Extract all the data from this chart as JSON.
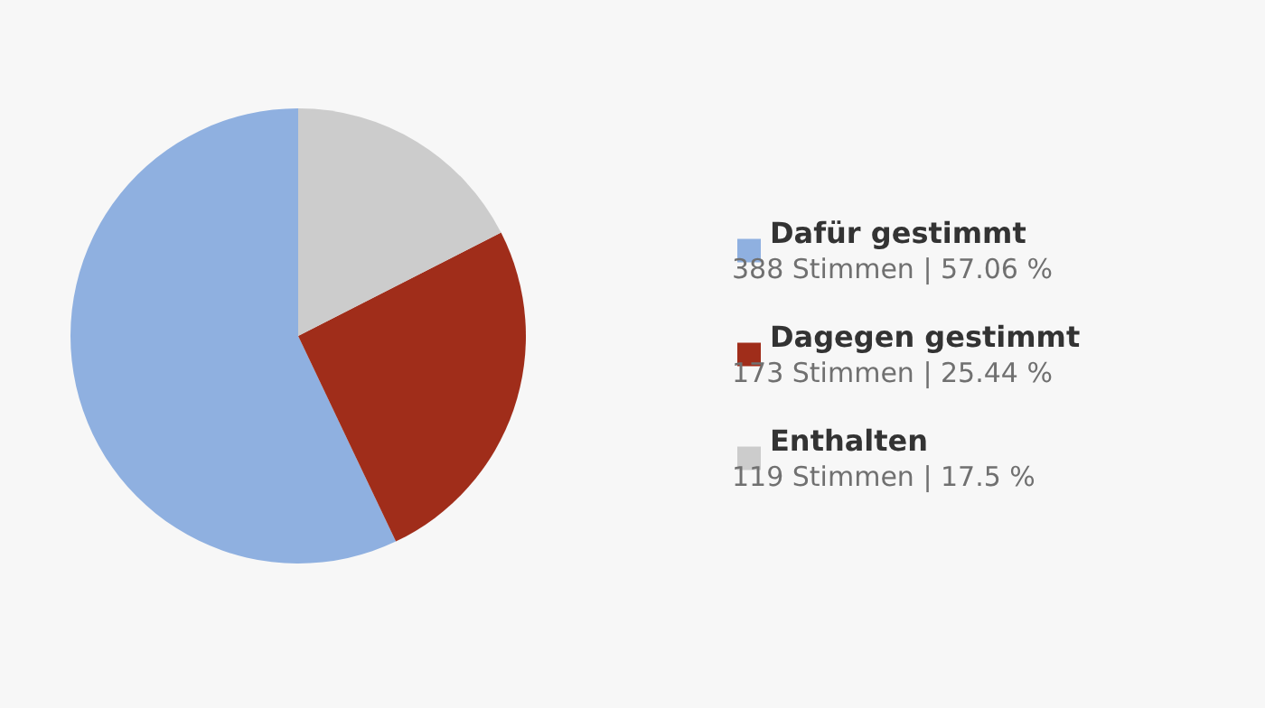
{
  "chart_data": {
    "type": "pie",
    "categories": [
      "Dafür gestimmt",
      "Dagegen gestimmt",
      "Enthalten"
    ],
    "values": [
      388,
      173,
      119
    ],
    "value_labels": [
      "388 Stimmen | 57.06 %",
      "173 Stimmen | 25.44 %",
      "119 Stimmen | 17.5 %"
    ],
    "colors": [
      "#8fb0e0",
      "#a02d1a",
      "#cccccc"
    ],
    "legend": "right"
  }
}
